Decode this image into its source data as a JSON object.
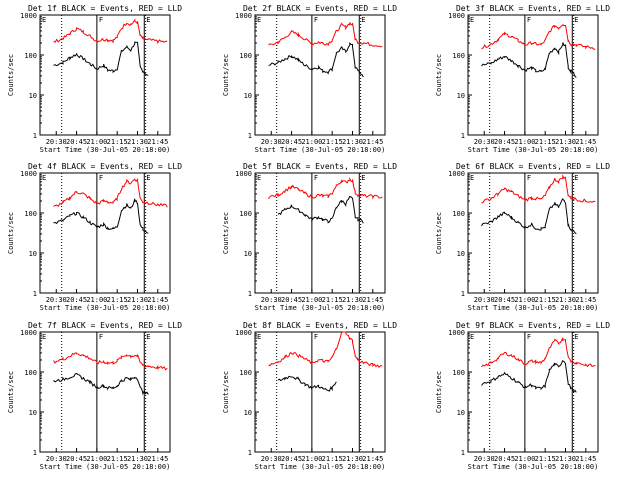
{
  "colors": {
    "events": "#000000",
    "lld": "#ff0000",
    "axis": "#000000",
    "background": "#ffffff"
  },
  "panel_template": {
    "title_suffix": " BLACK = Events, RED = LLD",
    "ylabel": "Counts/sec",
    "xlabel": "Start Time (30-Jul-05 20:18:00)",
    "xticks": [
      "20:30",
      "20:45",
      "21:00",
      "21:15",
      "21:30",
      "21:45"
    ],
    "ytick_labels": [
      "1",
      "10",
      "100",
      "1000"
    ]
  },
  "chart_data": [
    {
      "type": "line",
      "title": "Det 1f BLACK = Events, RED = LLD",
      "detector": "Det 1f",
      "ylabel": "Counts/sec",
      "xlabel": "Start Time (30-Jul-05 20:18:00)",
      "yscale": "log",
      "xlim": [
        "20:18",
        "21:54"
      ],
      "ylim": [
        1,
        1000
      ],
      "x": [
        "20:28",
        "20:35",
        "20:40",
        "20:45",
        "20:50",
        "20:55",
        "21:00",
        "21:05",
        "21:08",
        "21:12",
        "21:15",
        "21:18",
        "21:22",
        "21:25",
        "21:28",
        "21:30",
        "21:32",
        "21:34",
        "21:38",
        "21:45",
        "21:52"
      ],
      "series": [
        {
          "name": "Events",
          "values": [
            55,
            65,
            85,
            105,
            80,
            60,
            45,
            55,
            42,
            40,
            45,
            120,
            160,
            130,
            200,
            190,
            50,
            40,
            30,
            null,
            null
          ]
        },
        {
          "name": "LLD",
          "values": [
            210,
            260,
            340,
            460,
            380,
            300,
            220,
            250,
            240,
            230,
            280,
            460,
            650,
            580,
            700,
            650,
            300,
            260,
            240,
            220,
            210
          ]
        }
      ],
      "markers": [
        "F",
        "E"
      ]
    },
    {
      "type": "line",
      "title": "Det 2f BLACK = Events, RED = LLD",
      "detector": "Det 2f",
      "ylabel": "Counts/sec",
      "xlabel": "Start Time (30-Jul-05 20:18:00)",
      "yscale": "log",
      "xlim": [
        "20:18",
        "21:54"
      ],
      "ylim": [
        1,
        1000
      ],
      "x": [
        "20:28",
        "20:35",
        "20:40",
        "20:45",
        "20:50",
        "20:55",
        "21:00",
        "21:05",
        "21:08",
        "21:12",
        "21:15",
        "21:18",
        "21:22",
        "21:25",
        "21:28",
        "21:30",
        "21:32",
        "21:34",
        "21:38",
        "21:45",
        "21:52"
      ],
      "series": [
        {
          "name": "Events",
          "values": [
            55,
            65,
            80,
            95,
            75,
            55,
            45,
            50,
            40,
            38,
            45,
            110,
            150,
            120,
            190,
            170,
            50,
            40,
            30,
            null,
            null
          ]
        },
        {
          "name": "LLD",
          "values": [
            170,
            210,
            270,
            380,
            320,
            250,
            190,
            210,
            200,
            190,
            240,
            390,
            560,
            500,
            620,
            580,
            250,
            210,
            200,
            180,
            170
          ]
        }
      ],
      "markers": [
        "F",
        "E"
      ]
    },
    {
      "type": "line",
      "title": "Det 3f BLACK = Events, RED = LLD",
      "detector": "Det 3f",
      "ylabel": "Counts/sec",
      "xlabel": "Start Time (30-Jul-05 20:18:00)",
      "yscale": "log",
      "xlim": [
        "20:18",
        "21:54"
      ],
      "ylim": [
        1,
        1000
      ],
      "x": [
        "20:28",
        "20:35",
        "20:40",
        "20:45",
        "20:50",
        "20:55",
        "21:00",
        "21:05",
        "21:08",
        "21:12",
        "21:15",
        "21:18",
        "21:22",
        "21:25",
        "21:28",
        "21:30",
        "21:32",
        "21:34",
        "21:38",
        "21:45",
        "21:52"
      ],
      "series": [
        {
          "name": "Events",
          "values": [
            55,
            62,
            78,
            92,
            72,
            55,
            42,
            48,
            40,
            38,
            45,
            110,
            150,
            120,
            190,
            170,
            50,
            40,
            30,
            null,
            null
          ]
        },
        {
          "name": "LLD",
          "values": [
            150,
            190,
            240,
            340,
            290,
            230,
            180,
            200,
            190,
            180,
            230,
            380,
            540,
            480,
            600,
            560,
            230,
            190,
            180,
            160,
            150
          ]
        }
      ],
      "markers": [
        "F",
        "E"
      ]
    },
    {
      "type": "line",
      "title": "Det 4f BLACK = Events, RED = LLD",
      "detector": "Det 4f",
      "ylabel": "Counts/sec",
      "xlabel": "Start Time (30-Jul-05 20:18:00)",
      "yscale": "log",
      "xlim": [
        "20:18",
        "21:54"
      ],
      "ylim": [
        1,
        1000
      ],
      "x": [
        "20:28",
        "20:35",
        "20:40",
        "20:45",
        "20:50",
        "20:55",
        "21:00",
        "21:05",
        "21:08",
        "21:12",
        "21:15",
        "21:18",
        "21:22",
        "21:25",
        "21:28",
        "21:30",
        "21:32",
        "21:34",
        "21:38",
        "21:45",
        "21:52"
      ],
      "series": [
        {
          "name": "Events",
          "values": [
            55,
            65,
            85,
            100,
            78,
            58,
            44,
            52,
            42,
            40,
            45,
            115,
            160,
            130,
            210,
            180,
            50,
            40,
            30,
            null,
            null
          ]
        },
        {
          "name": "LLD",
          "values": [
            140,
            180,
            240,
            340,
            300,
            230,
            170,
            200,
            190,
            180,
            230,
            400,
            620,
            560,
            700,
            660,
            230,
            190,
            180,
            160,
            150
          ]
        }
      ],
      "markers": [
        "F",
        "E"
      ]
    },
    {
      "type": "line",
      "title": "Det 5f BLACK = Events, RED = LLD",
      "detector": "Det 5f",
      "ylabel": "Counts/sec",
      "xlabel": "Start Time (30-Jul-05 20:18:00)",
      "yscale": "log",
      "xlim": [
        "20:18",
        "21:54"
      ],
      "ylim": [
        1,
        1000
      ],
      "x": [
        "20:28",
        "20:35",
        "20:40",
        "20:45",
        "20:50",
        "20:55",
        "21:00",
        "21:05",
        "21:08",
        "21:12",
        "21:15",
        "21:18",
        "21:22",
        "21:25",
        "21:28",
        "21:30",
        "21:32",
        "21:34",
        "21:38",
        "21:45",
        "21:52"
      ],
      "series": [
        {
          "name": "Events",
          "values": [
            null,
            90,
            120,
            150,
            120,
            90,
            70,
            80,
            68,
            62,
            70,
            140,
            200,
            170,
            250,
            220,
            80,
            70,
            60,
            null,
            null
          ]
        },
        {
          "name": "LLD",
          "values": [
            250,
            280,
            360,
            460,
            390,
            310,
            250,
            280,
            270,
            260,
            310,
            470,
            650,
            580,
            700,
            650,
            320,
            290,
            270,
            260,
            250
          ]
        }
      ],
      "markers": [
        "F",
        "E"
      ]
    },
    {
      "type": "line",
      "title": "Det 6f BLACK = Events, RED = LLD",
      "detector": "Det 6f",
      "ylabel": "Counts/sec",
      "xlabel": "Start Time (30-Jul-05 20:18:00)",
      "yscale": "log",
      "xlim": [
        "20:18",
        "21:54"
      ],
      "ylim": [
        1,
        1000
      ],
      "x": [
        "20:28",
        "20:35",
        "20:40",
        "20:45",
        "20:50",
        "20:55",
        "21:00",
        "21:05",
        "21:08",
        "21:12",
        "21:15",
        "21:18",
        "21:22",
        "21:25",
        "21:28",
        "21:30",
        "21:32",
        "21:34",
        "21:38",
        "21:45",
        "21:52"
      ],
      "series": [
        {
          "name": "Events",
          "values": [
            50,
            60,
            80,
            100,
            78,
            58,
            44,
            52,
            42,
            40,
            45,
            120,
            170,
            140,
            220,
            190,
            50,
            40,
            30,
            null,
            null
          ]
        },
        {
          "name": "LLD",
          "values": [
            190,
            230,
            300,
            400,
            340,
            270,
            210,
            240,
            230,
            220,
            270,
            430,
            700,
            620,
            800,
            740,
            280,
            240,
            220,
            200,
            190
          ]
        }
      ],
      "markers": [
        "F",
        "E"
      ]
    },
    {
      "type": "line",
      "title": "Det 7f BLACK = Events, RED = LLD",
      "detector": "Det 7f",
      "ylabel": "Counts/sec",
      "xlabel": "Start Time (30-Jul-05 20:18:00)",
      "yscale": "log",
      "xlim": [
        "20:18",
        "21:54"
      ],
      "ylim": [
        1,
        1000
      ],
      "x": [
        "20:28",
        "20:35",
        "20:40",
        "20:45",
        "20:50",
        "20:55",
        "21:00",
        "21:05",
        "21:08",
        "21:12",
        "21:15",
        "21:18",
        "21:22",
        "21:25",
        "21:28",
        "21:30",
        "21:32",
        "21:34",
        "21:38",
        "21:45",
        "21:52"
      ],
      "series": [
        {
          "name": "Events",
          "values": [
            60,
            65,
            75,
            85,
            70,
            55,
            42,
            45,
            40,
            40,
            45,
            60,
            70,
            65,
            75,
            70,
            40,
            32,
            28,
            null,
            null
          ]
        },
        {
          "name": "LLD",
          "values": [
            180,
            210,
            250,
            300,
            260,
            220,
            170,
            180,
            170,
            170,
            190,
            230,
            270,
            250,
            260,
            250,
            170,
            150,
            140,
            130,
            120
          ]
        }
      ],
      "markers": [
        "F",
        "E"
      ]
    },
    {
      "type": "line",
      "title": "Det 8f BLACK = Events, RED = LLD",
      "detector": "Det 8f",
      "ylabel": "Counts/sec",
      "xlabel": "Start Time (30-Jul-05 20:18:00)",
      "yscale": "log",
      "xlim": [
        "20:18",
        "21:54"
      ],
      "ylim": [
        1,
        1000
      ],
      "x": [
        "20:28",
        "20:35",
        "20:40",
        "20:45",
        "20:50",
        "20:55",
        "21:00",
        "21:05",
        "21:08",
        "21:12",
        "21:15",
        "21:18",
        "21:22",
        "21:25",
        "21:28",
        "21:30",
        "21:32",
        "21:34",
        "21:38",
        "21:45",
        "21:52"
      ],
      "series": [
        {
          "name": "Events",
          "values": [
            null,
            60,
            70,
            80,
            65,
            50,
            40,
            45,
            38,
            35,
            40,
            60,
            null,
            null,
            null,
            null,
            null,
            null,
            null,
            null,
            null
          ]
        },
        {
          "name": "LLD",
          "values": [
            150,
            180,
            230,
            310,
            260,
            210,
            170,
            200,
            190,
            180,
            230,
            380,
            1000,
            1000,
            700,
            600,
            250,
            200,
            170,
            150,
            140
          ]
        }
      ],
      "markers": [
        "F",
        "E"
      ]
    },
    {
      "type": "line",
      "title": "Det 9f BLACK = Events, RED = LLD",
      "detector": "Det 9f",
      "ylabel": "Counts/sec",
      "xlabel": "Start Time (30-Jul-05 20:18:00)",
      "yscale": "log",
      "xlim": [
        "20:18",
        "21:54"
      ],
      "ylim": [
        1,
        1000
      ],
      "x": [
        "20:28",
        "20:35",
        "20:40",
        "20:45",
        "20:50",
        "20:55",
        "21:00",
        "21:05",
        "21:08",
        "21:12",
        "21:15",
        "21:18",
        "21:22",
        "21:25",
        "21:28",
        "21:30",
        "21:32",
        "21:34",
        "21:38",
        "21:45",
        "21:52"
      ],
      "series": [
        {
          "name": "Events",
          "values": [
            50,
            60,
            75,
            90,
            72,
            55,
            42,
            48,
            40,
            38,
            45,
            110,
            160,
            130,
            200,
            170,
            50,
            40,
            30,
            null,
            null
          ]
        },
        {
          "name": "LLD",
          "values": [
            130,
            170,
            220,
            300,
            260,
            210,
            160,
            190,
            180,
            170,
            220,
            380,
            600,
            540,
            680,
            640,
            230,
            190,
            170,
            150,
            140
          ]
        }
      ],
      "markers": [
        "F",
        "E"
      ]
    }
  ]
}
